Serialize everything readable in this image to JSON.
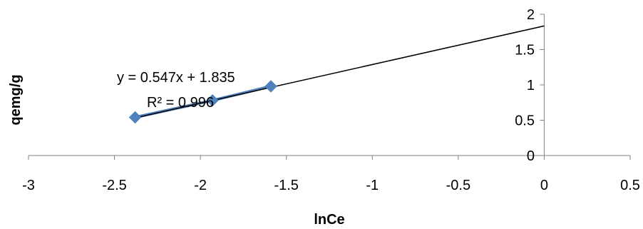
{
  "chart_data": {
    "type": "scatter",
    "xlabel": "lnCe",
    "ylabel": "qemg/g",
    "xlim": [
      -3,
      0.5
    ],
    "ylim": [
      0,
      2
    ],
    "x_ticks": [
      -3,
      -2.5,
      -2,
      -1.5,
      -1,
      -0.5,
      0,
      0.5
    ],
    "x_tick_labels": [
      "-3",
      "-2.5",
      "-2",
      "-1.5",
      "-1",
      "-0.5",
      "0",
      "0.5"
    ],
    "y_ticks": [
      0,
      0.5,
      1,
      1.5,
      2
    ],
    "y_tick_labels": [
      "0",
      "0.5",
      "1",
      "1.5",
      "2"
    ],
    "grid": false,
    "legend": "none",
    "series": [
      {
        "x": [
          -2.38,
          -1.93,
          -1.59
        ],
        "y": [
          0.54,
          0.78,
          0.98
        ],
        "color": "#4f81bd",
        "marker": "diamond",
        "connected": true
      }
    ],
    "trendline": {
      "slope": 0.547,
      "intercept": 1.835,
      "x_range": [
        -2.38,
        0
      ],
      "color": "#000000"
    },
    "annotations": {
      "equation": "y = 0.547x + 1.835",
      "r_squared": "R² = 0.996"
    }
  }
}
